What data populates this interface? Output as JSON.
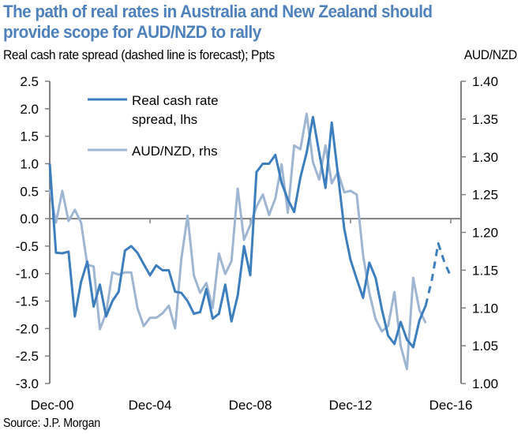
{
  "header": {
    "title_line1": "The path of real rates in Australia and New Zealand should",
    "title_line2": "provide scope for AUD/NZD to rally",
    "subtitle": "Real cash rate spread (dashed line is forecast); Ppts",
    "right_axis_label": "AUD/NZD"
  },
  "footer": {
    "source": "Source: J.P. Morgan"
  },
  "colors": {
    "title": "#4f81bd",
    "real_rate": "#3d7ebf",
    "audnzd": "#9fb6d2",
    "axis": "#7f7f7f"
  },
  "chart_data": {
    "type": "line",
    "title": "The path of real rates in Australia and New Zealand should provide scope for AUD/NZD to rally",
    "subtitle": "Real cash rate spread (dashed line is forecast); Ppts",
    "xlabel": "",
    "ylabel": "Ppts",
    "y2label": "AUD/NZD",
    "x_range": [
      2000.92,
      2017.4
    ],
    "x_ticks": [
      {
        "label": "Dec-00",
        "value": 2000.92
      },
      {
        "label": "Dec-04",
        "value": 2004.92
      },
      {
        "label": "Dec-08",
        "value": 2008.92
      },
      {
        "label": "Dec-12",
        "value": 2012.92
      },
      {
        "label": "Dec-16",
        "value": 2016.92
      }
    ],
    "ylim": [
      -3.0,
      2.5
    ],
    "y_ticks": [
      "2.5",
      "2.0",
      "1.5",
      "1.0",
      "0.5",
      "0.0",
      "-0.5",
      "-1.0",
      "-1.5",
      "-2.0",
      "-2.5",
      "-3.0"
    ],
    "y2lim": [
      1.0,
      1.4
    ],
    "y2_ticks": [
      "1.40",
      "1.35",
      "1.30",
      "1.25",
      "1.20",
      "1.15",
      "1.10",
      "1.05",
      "1.00"
    ],
    "grid": false,
    "legend": {
      "placement": "top-left",
      "entries": [
        {
          "label_line1": "Real cash rate",
          "label_line2": "spread, lhs",
          "series": "real_rate"
        },
        {
          "label_line1": "AUD/NZD, rhs",
          "label_line2": "",
          "series": "audnzd"
        }
      ]
    },
    "series": [
      {
        "name": "Real cash rate spread, lhs",
        "key": "real_rate",
        "axis": "left",
        "x_start": 2000.92,
        "x_step": 0.25,
        "values": [
          1.0,
          -0.62,
          -0.63,
          -0.6,
          -1.78,
          -1.15,
          -0.78,
          -1.6,
          -1.2,
          -1.78,
          -1.5,
          -1.33,
          -0.58,
          -0.5,
          -0.62,
          -0.83,
          -1.03,
          -0.85,
          -0.94,
          -0.94,
          -1.33,
          -1.35,
          -1.5,
          -1.73,
          -1.7,
          -1.28,
          -1.82,
          -1.73,
          -1.2,
          -1.87,
          -1.4,
          -0.5,
          -1.03,
          0.85,
          1.0,
          1.0,
          1.16,
          0.65,
          0.35,
          0.12,
          0.75,
          1.2,
          1.85,
          1.2,
          0.56,
          1.75,
          0.8,
          -0.19,
          -0.75,
          -1.1,
          -1.44,
          -0.8,
          -1.08,
          -1.65,
          -2.13,
          -2.28,
          -1.88,
          -2.2,
          -2.34,
          -1.85,
          -1.58
        ]
      },
      {
        "name": "Real cash rate spread forecast",
        "key": "real_rate_forecast",
        "axis": "left",
        "dashed": true,
        "x_start": 2015.92,
        "x_step": 0.25,
        "values": [
          -1.58,
          -1.1,
          -0.45,
          -0.8,
          -1.05
        ]
      },
      {
        "name": "AUD/NZD, rhs",
        "key": "audnzd",
        "axis": "right",
        "x_start": 2000.92,
        "x_step": 0.25,
        "values": [
          1.257,
          1.213,
          1.255,
          1.215,
          1.23,
          1.213,
          1.157,
          1.155,
          1.072,
          1.093,
          1.147,
          1.144,
          1.147,
          1.147,
          1.1,
          1.076,
          1.087,
          1.087,
          1.093,
          1.103,
          1.073,
          1.165,
          1.222,
          1.143,
          1.12,
          1.133,
          1.1,
          1.172,
          1.145,
          1.162,
          1.258,
          1.19,
          1.21,
          1.234,
          1.25,
          1.223,
          1.245,
          1.29,
          1.226,
          1.315,
          1.31,
          1.357,
          1.293,
          1.27,
          1.315,
          1.265,
          1.28,
          1.253,
          1.255,
          1.25,
          1.17,
          1.12,
          1.085,
          1.069,
          1.076,
          1.121,
          1.05,
          1.019,
          1.14,
          1.097,
          1.08
        ]
      }
    ]
  }
}
